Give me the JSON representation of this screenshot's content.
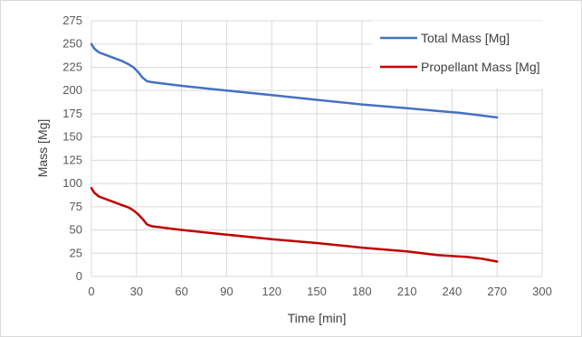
{
  "chart_data": {
    "type": "line",
    "title": "",
    "xlabel": "Time [min]",
    "ylabel": "Mass [Mg]",
    "xlim": [
      0,
      300
    ],
    "ylim": [
      0,
      275
    ],
    "xticks": [
      0,
      30,
      60,
      90,
      120,
      150,
      180,
      210,
      240,
      270,
      300
    ],
    "yticks": [
      0,
      25,
      50,
      75,
      100,
      125,
      150,
      175,
      200,
      225,
      250,
      275
    ],
    "grid": true,
    "legend_position": "top-right",
    "series": [
      {
        "name": "Total Mass [Mg]",
        "color": "#4472c4",
        "x": [
          0,
          2,
          5,
          10,
          15,
          20,
          25,
          28,
          31,
          34,
          37,
          40,
          60,
          90,
          120,
          150,
          180,
          210,
          230,
          245,
          255,
          270
        ],
        "y": [
          250,
          245,
          241,
          238,
          235,
          232,
          228,
          225,
          220,
          214,
          210,
          209,
          205,
          200,
          195,
          190,
          185,
          181,
          178,
          176,
          174,
          171
        ]
      },
      {
        "name": "Propellant Mass [Mg]",
        "color": "#c00000",
        "x": [
          0,
          2,
          5,
          10,
          15,
          20,
          25,
          28,
          31,
          34,
          37,
          40,
          60,
          90,
          120,
          150,
          180,
          210,
          220,
          230,
          240,
          250,
          260,
          270
        ],
        "y": [
          95,
          90,
          86,
          83,
          80,
          77,
          74,
          71,
          67,
          62,
          56,
          54,
          50,
          45,
          40,
          36,
          31,
          27,
          25,
          23,
          22,
          21,
          19,
          16
        ]
      }
    ]
  }
}
